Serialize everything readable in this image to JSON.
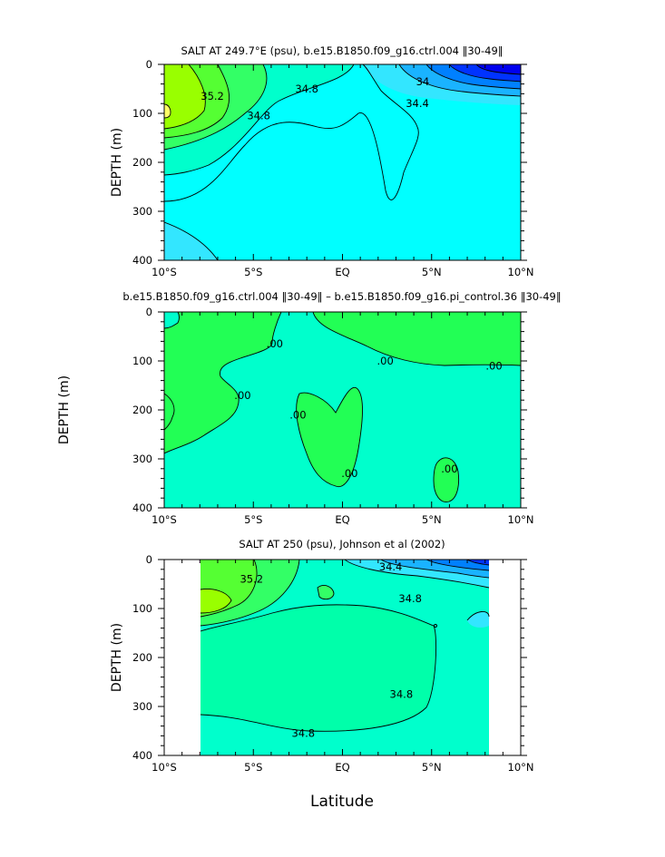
{
  "xlabel_common": "Latitude",
  "colors": {
    "cyan": "#00ffff",
    "sky": "#33e6ff",
    "lightblue": "#1ab3ff",
    "blue": "#0080ff",
    "darkblue": "#0033ff",
    "navy": "#0000ee",
    "aquagreen": "#00ffcc",
    "seagreen": "#00ffaa",
    "green": "#33ff66",
    "lime": "#55ff33",
    "yellowgreen": "#99ff00",
    "yellow": "#ffff66",
    "diffgreen": "#22ff55"
  },
  "chart_data": [
    {
      "type": "contour",
      "title": "SALT AT 249.7°E (psu), b.e15.B1850.f09_g16.ctrl.004 ‖30-49‖",
      "ylabel": "DEPTH (m)",
      "xlabel": "",
      "xlim": [
        -10,
        10
      ],
      "ylim": [
        400,
        0
      ],
      "x_ticks": [
        "10°S",
        "5°S",
        "EQ",
        "5°N",
        "10°N"
      ],
      "y_ticks": [
        "0",
        "100",
        "200",
        "300",
        "400"
      ],
      "contour_labels": [
        {
          "text": "35.2",
          "lat": -7.3,
          "depth": 65
        },
        {
          "text": "34.8",
          "lat": -2.0,
          "depth": 50
        },
        {
          "text": "34.8",
          "lat": -4.7,
          "depth": 105
        },
        {
          "text": "34",
          "lat": 4.5,
          "depth": 35
        },
        {
          "text": "34.4",
          "lat": 4.2,
          "depth": 80
        }
      ]
    },
    {
      "type": "contour",
      "title": "b.e15.B1850.f09_g16.ctrl.004 ‖30-49‖ – b.e15.B1850.f09_g16.pi_control.36 ‖30-49‖",
      "ylabel": "DEPTH (m)",
      "xlabel": "",
      "xlim": [
        -10,
        10
      ],
      "ylim": [
        400,
        0
      ],
      "x_ticks": [
        "10°S",
        "5°S",
        "EQ",
        "5°N",
        "10°N"
      ],
      "y_ticks": [
        "0",
        "100",
        "200",
        "300",
        "400"
      ],
      "contour_labels": [
        {
          "text": ".00",
          "lat": -3.8,
          "depth": 65
        },
        {
          "text": ".00",
          "lat": 2.4,
          "depth": 100
        },
        {
          "text": ".00",
          "lat": 8.5,
          "depth": 110
        },
        {
          "text": ".00",
          "lat": -5.6,
          "depth": 170
        },
        {
          "text": ".00",
          "lat": -2.5,
          "depth": 210
        },
        {
          "text": ".00",
          "lat": 0.4,
          "depth": 330
        },
        {
          "text": ".00",
          "lat": 6.0,
          "depth": 320
        }
      ]
    },
    {
      "type": "contour",
      "title": "SALT AT 250 (psu), Johnson et al (2002)",
      "ylabel": "DEPTH (m)",
      "xlabel": "Latitude",
      "xlim": [
        -10,
        10
      ],
      "ylim": [
        400,
        0
      ],
      "x_ticks": [
        "10°S",
        "5°S",
        "EQ",
        "5°N",
        "10°N"
      ],
      "y_ticks": [
        "0",
        "100",
        "200",
        "300",
        "400"
      ],
      "contour_labels": [
        {
          "text": "35.2",
          "lat": -5.1,
          "depth": 40
        },
        {
          "text": "34.4",
          "lat": 2.7,
          "depth": 15
        },
        {
          "text": "34.8",
          "lat": 3.8,
          "depth": 80
        },
        {
          "text": "34.8",
          "lat": 3.3,
          "depth": 275
        },
        {
          "text": "34.8",
          "lat": -2.2,
          "depth": 355
        }
      ]
    }
  ]
}
